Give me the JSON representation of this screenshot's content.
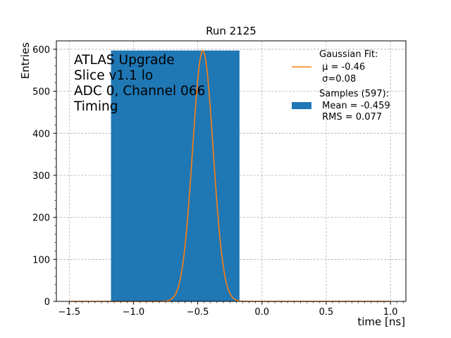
{
  "chart_data": {
    "type": "bar",
    "title": "Run 2125",
    "xlabel": "time [ns]",
    "ylabel": "Entries",
    "xlim": [
      -1.6,
      1.12
    ],
    "ylim": [
      0,
      620
    ],
    "grid": true,
    "x_ticks": [
      -1.5,
      -1.0,
      -0.5,
      0.0,
      0.5,
      1.0
    ],
    "x_tick_labels": [
      "−1.5",
      "−1.0",
      "−0.5",
      "0.0",
      "0.5",
      "1.0"
    ],
    "y_ticks": [
      0,
      100,
      200,
      300,
      400,
      500,
      600
    ],
    "y_tick_labels": [
      "0",
      "100",
      "200",
      "300",
      "400",
      "500",
      "600"
    ],
    "annotation": [
      "ATLAS Upgrade",
      "Slice v1.1 lo",
      "ADC 0, Channel 066",
      "Timing"
    ],
    "legend_position": "top-right",
    "histogram": {
      "name": "Samples (597):",
      "bin_edges": [
        -1.175,
        -0.175
      ],
      "counts": [
        597
      ],
      "color": "#1f77b4"
    },
    "fit": {
      "name": "Gaussian Fit:",
      "mu": -0.46,
      "sigma": 0.08,
      "amplitude": 597,
      "x_range": [
        -1.5,
        1.0
      ],
      "color": "#ff7f0e"
    },
    "legend": [
      {
        "kind": "line",
        "lines": [
          "Gaussian Fit:",
          " μ = -0.46",
          " σ=0.08"
        ],
        "color": "#ff7f0e"
      },
      {
        "kind": "patch",
        "lines": [
          "Samples (597):",
          " Mean = -0.459",
          " RMS = 0.077"
        ],
        "color": "#1f77b4"
      }
    ]
  }
}
